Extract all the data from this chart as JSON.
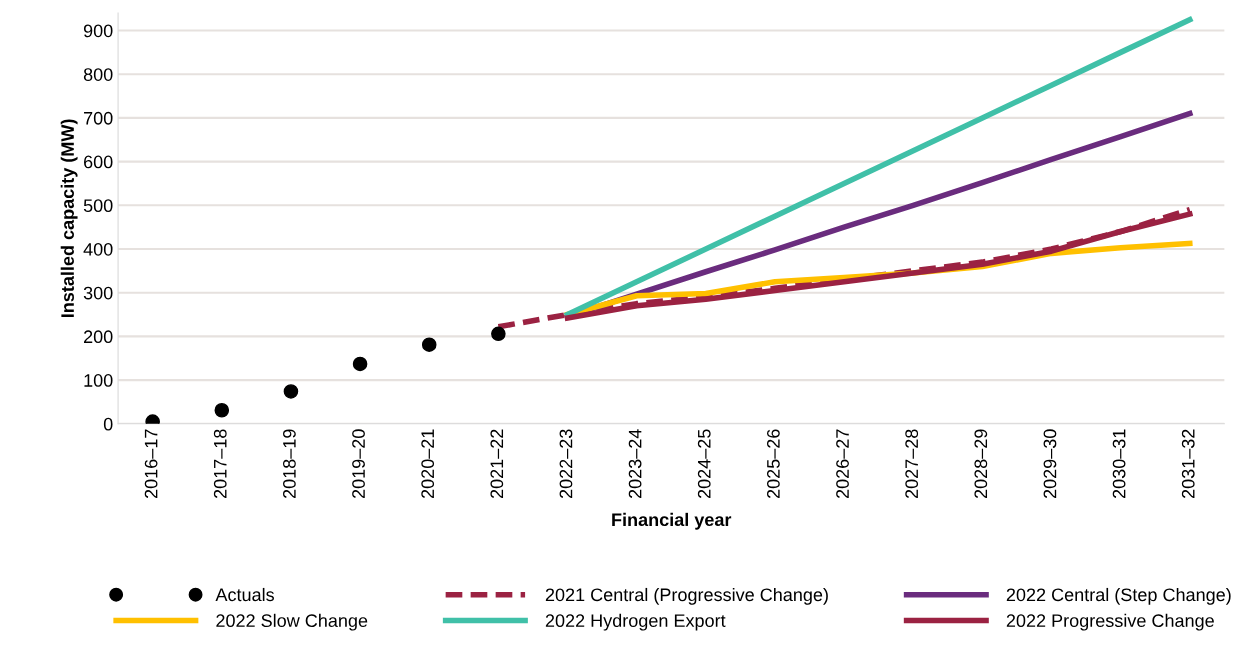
{
  "chart_data": {
    "type": "line",
    "xlabel": "Financial year",
    "ylabel": "Installed capacity (MW)",
    "categories": [
      "2016–17",
      "2017–18",
      "2018–19",
      "2019–20",
      "2020–21",
      "2021–22",
      "2022–23",
      "2023–24",
      "2024–25",
      "2025–26",
      "2026–27",
      "2027–28",
      "2028–29",
      "2029–30",
      "2030–31",
      "2031–32"
    ],
    "ylim": [
      0,
      940
    ],
    "yticks": [
      0,
      100,
      200,
      300,
      400,
      500,
      600,
      700,
      800,
      900
    ],
    "grid": "y",
    "legend": "bottom",
    "series": [
      {
        "name": "Actuals",
        "type": "scatter",
        "color": "#000000",
        "marker": "circle",
        "values": [
          5,
          31,
          74,
          137,
          181,
          206,
          null,
          null,
          null,
          null,
          null,
          null,
          null,
          null,
          null,
          null
        ]
      },
      {
        "name": "2021 Central (Progressive Change)",
        "color": "#9b2242",
        "line_style": "dashed",
        "values": [
          null,
          null,
          null,
          null,
          null,
          222,
          250,
          275,
          290,
          310,
          330,
          350,
          370,
          400,
          440,
          490
        ]
      },
      {
        "name": "2022 Central (Step Change)",
        "color": "#6a2c7e",
        "values": [
          null,
          null,
          null,
          null,
          null,
          null,
          245,
          297,
          348,
          398,
          450,
          500,
          552,
          605,
          657,
          710
        ]
      },
      {
        "name": "2022 Slow Change",
        "color": "#ffc000",
        "values": [
          null,
          null,
          null,
          null,
          null,
          null,
          250,
          293,
          298,
          325,
          335,
          345,
          360,
          390,
          403,
          413
        ]
      },
      {
        "name": "2022 Hydrogen Export",
        "color": "#40c0a8",
        "values": [
          null,
          null,
          null,
          null,
          null,
          null,
          250,
          325,
          400,
          475,
          550,
          625,
          700,
          775,
          850,
          925
        ]
      },
      {
        "name": "2022 Progressive Change",
        "color": "#9b2242",
        "values": [
          null,
          null,
          null,
          null,
          null,
          null,
          242,
          270,
          285,
          305,
          325,
          345,
          365,
          395,
          440,
          480
        ]
      }
    ]
  }
}
